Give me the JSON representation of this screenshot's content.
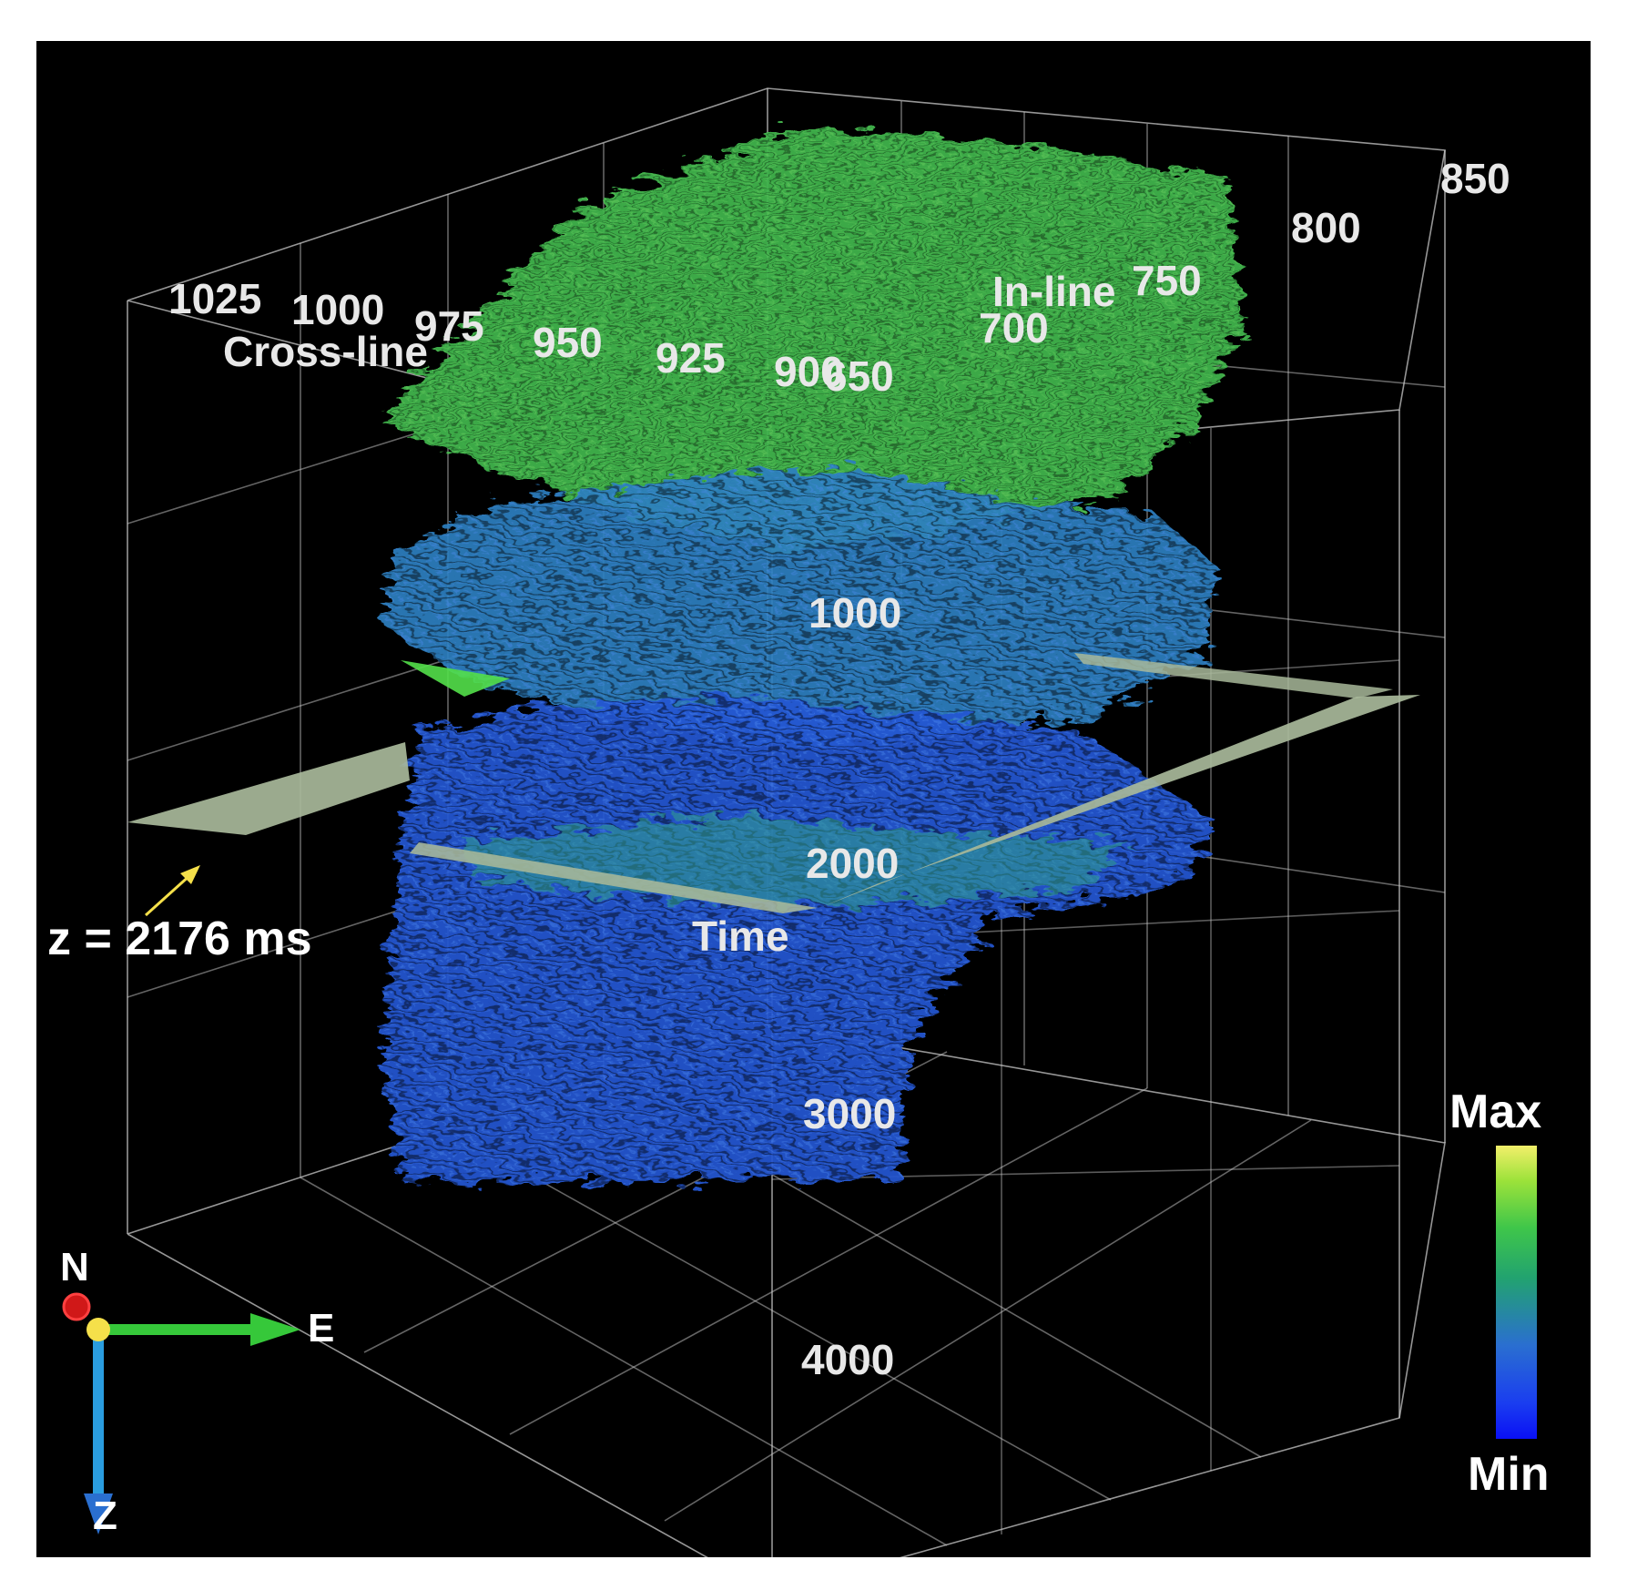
{
  "crossline": {
    "title": "Cross-line",
    "ticks": [
      "1025",
      "1000",
      "975",
      "950",
      "925",
      "900"
    ]
  },
  "inline": {
    "title": "In-line",
    "ticks": [
      "850",
      "800",
      "750",
      "700",
      "650"
    ]
  },
  "time": {
    "title": "Time",
    "ticks": [
      "1000",
      "2000",
      "3000",
      "4000"
    ]
  },
  "slice_annotation": "z = 2176 ms",
  "colorbar": {
    "max_label": "Max",
    "min_label": "Min"
  },
  "orientation": {
    "north": "N",
    "east": "E",
    "down": "Z"
  },
  "colors": {
    "background": "#000000",
    "shallow_attribute": "#3dbb4a",
    "deep_attribute": "#2458d8",
    "time_slice": "#a8b89a",
    "arrow": "#f5e04a"
  }
}
